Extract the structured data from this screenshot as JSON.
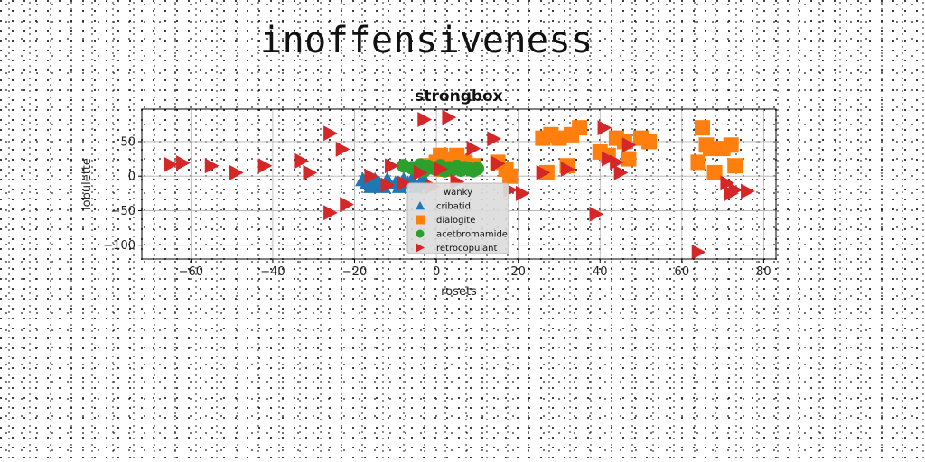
{
  "page": {
    "title": "inoffensiveness"
  },
  "chart_data": {
    "type": "scatter",
    "title": "strongbox",
    "xlabel": "rosets",
    "ylabel": "lobulette",
    "xlim": [
      -72,
      83
    ],
    "ylim": [
      -120,
      97
    ],
    "xticks": [
      -60,
      -40,
      -20,
      0,
      20,
      40,
      60,
      80
    ],
    "yticks": [
      -100,
      -50,
      0,
      50
    ],
    "grid": true,
    "legend": {
      "title": "wanky",
      "placement": "lower center"
    },
    "series": [
      {
        "name": "cribatid",
        "marker": "triangle-up",
        "color": "#1f77b4",
        "x": [
          -18,
          -17,
          -16,
          -15,
          -14,
          -13,
          -12,
          -10,
          -9,
          -8,
          -7,
          -6,
          -5,
          -4,
          -3
        ],
        "y": [
          -5,
          -10,
          -15,
          -5,
          -10,
          -15,
          -5,
          -10,
          -15,
          -5,
          -10,
          -5,
          -15,
          -10,
          -5
        ]
      },
      {
        "name": "dialogite",
        "marker": "square",
        "color": "#ff7f0e",
        "x": [
          -2,
          0,
          1,
          2,
          3,
          4,
          5,
          7,
          9,
          15,
          17,
          18,
          26,
          27,
          28,
          30,
          32,
          33,
          35,
          40,
          42,
          44,
          46,
          47,
          50,
          52,
          64,
          65,
          66,
          67,
          68,
          70,
          72,
          73
        ],
        "y": [
          15,
          20,
          30,
          10,
          25,
          15,
          30,
          20,
          15,
          20,
          10,
          0,
          55,
          5,
          60,
          55,
          15,
          60,
          70,
          35,
          30,
          55,
          50,
          25,
          55,
          50,
          20,
          70,
          45,
          40,
          5,
          40,
          45,
          15
        ]
      },
      {
        "name": "acetbromamide",
        "marker": "circle",
        "color": "#2ca02c",
        "x": [
          -8,
          -6,
          -5,
          -4,
          -3,
          -2,
          -1,
          0,
          1,
          2,
          3,
          4,
          5,
          6,
          7,
          8,
          9,
          10
        ],
        "y": [
          15,
          12,
          10,
          16,
          8,
          14,
          12,
          10,
          15,
          8,
          12,
          10,
          14,
          9,
          12,
          10,
          8,
          11
        ]
      },
      {
        "name": "retrocopulant",
        "marker": "triangle-right",
        "color": "#d62728",
        "x": [
          -65,
          -62,
          -55,
          -49,
          -42,
          -33,
          -31,
          -26,
          -26,
          -23,
          -22,
          -16,
          -12,
          -11,
          -8,
          -4,
          -3,
          -1,
          1,
          3,
          5,
          9,
          14,
          15,
          18,
          21,
          26,
          32,
          39,
          41,
          42,
          44,
          45,
          47,
          64,
          71,
          72,
          73,
          76
        ],
        "y": [
          17,
          19,
          15,
          5,
          15,
          22,
          5,
          62,
          -53,
          39,
          -41,
          0,
          -13,
          15,
          -10,
          5,
          82,
          -15,
          10,
          85,
          -8,
          40,
          54,
          18,
          -20,
          -25,
          5,
          10,
          -55,
          70,
          25,
          20,
          5,
          45,
          -110,
          -10,
          -25,
          -20,
          -22
        ]
      }
    ]
  }
}
